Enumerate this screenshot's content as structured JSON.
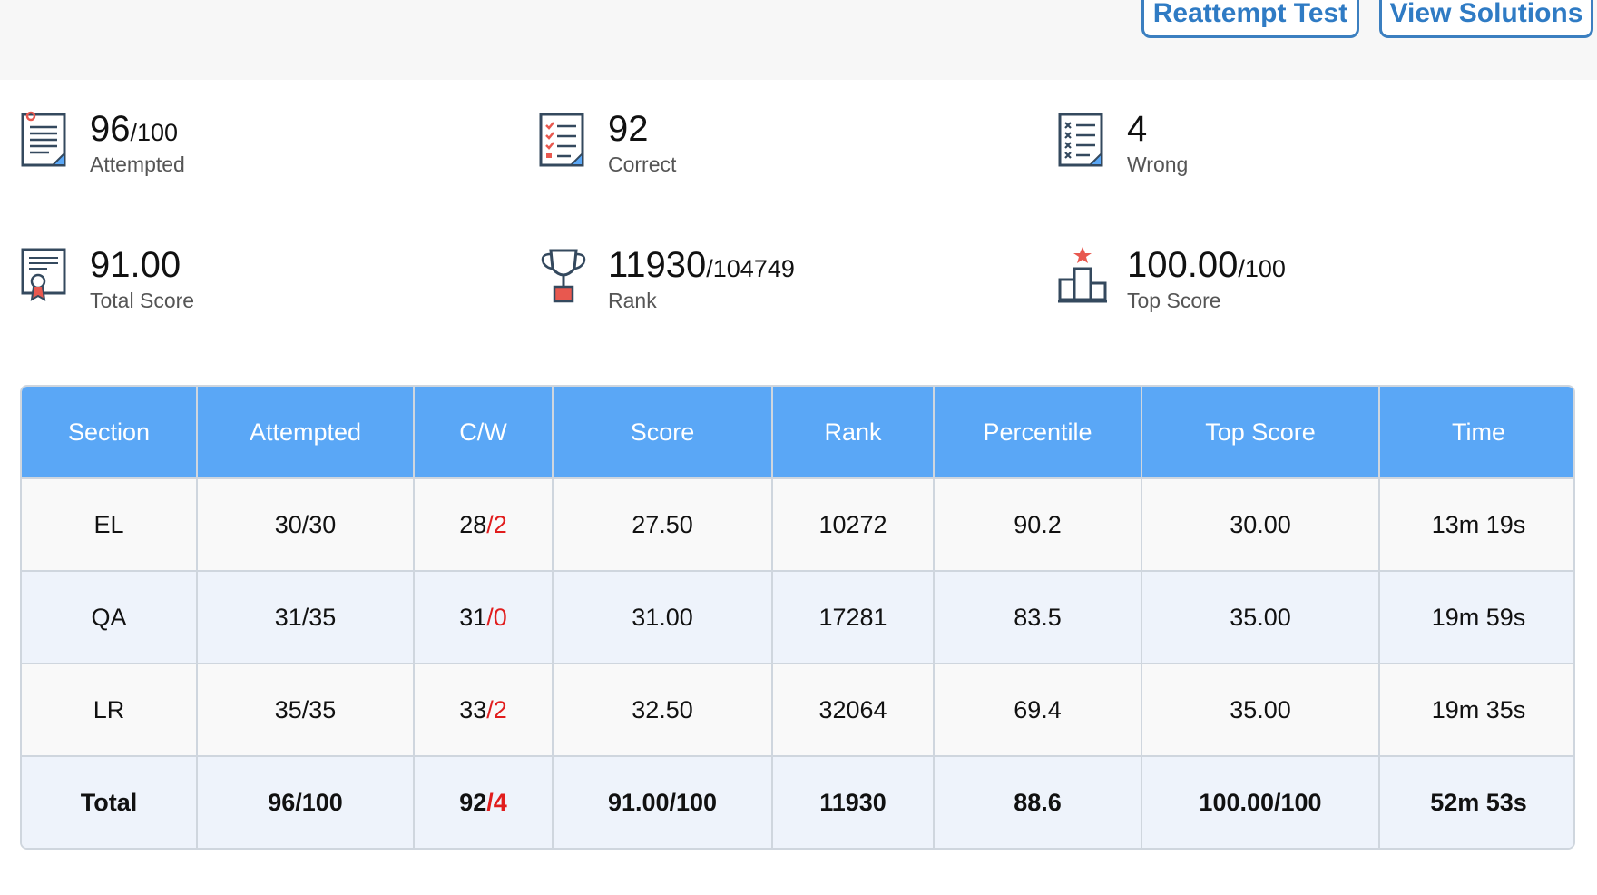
{
  "header": {
    "reattempt_label": "Reattempt Test",
    "solutions_label": "View Solutions"
  },
  "stats": {
    "attempted": {
      "value": "96",
      "denominator": "/100",
      "label": "Attempted",
      "icon": "exam-sheet-icon"
    },
    "correct": {
      "value": "92",
      "label": "Correct",
      "icon": "checklist-icon"
    },
    "wrong": {
      "value": "4",
      "label": "Wrong",
      "icon": "cross-list-icon"
    },
    "total_score": {
      "value": "91.00",
      "label": "Total Score",
      "icon": "certificate-icon"
    },
    "rank": {
      "value": "11930",
      "denominator": "/104749",
      "label": "Rank",
      "icon": "trophy-icon"
    },
    "top_score": {
      "value": "100.00",
      "denominator": "/100",
      "label": "Top Score",
      "icon": "podium-icon"
    }
  },
  "table": {
    "headers": [
      "Section",
      "Attempted",
      "C/W",
      "Score",
      "Rank",
      "Percentile",
      "Top Score",
      "Time"
    ],
    "rows": [
      {
        "section": "EL",
        "attempted": "30/30",
        "correct": "28",
        "wrong": "/2",
        "score": "27.50",
        "rank": "10272",
        "percentile": "90.2",
        "top_score": "30.00",
        "time": "13m 19s"
      },
      {
        "section": "QA",
        "attempted": "31/35",
        "correct": "31",
        "wrong": "/0",
        "score": "31.00",
        "rank": "17281",
        "percentile": "83.5",
        "top_score": "35.00",
        "time": "19m 59s"
      },
      {
        "section": "LR",
        "attempted": "35/35",
        "correct": "33",
        "wrong": "/2",
        "score": "32.50",
        "rank": "32064",
        "percentile": "69.4",
        "top_score": "35.00",
        "time": "19m 35s"
      }
    ],
    "total": {
      "section": "Total",
      "attempted": "96/100",
      "correct": "92",
      "wrong": "/4",
      "score": "91.00/100",
      "rank": "11930",
      "percentile": "88.6",
      "top_score": "100.00/100",
      "time": "52m 53s"
    }
  },
  "colors": {
    "accent": "#2f7bc4",
    "header_bg": "#5aa7f6",
    "wrong": "#e11d1d",
    "icon_red": "#e8584f"
  }
}
